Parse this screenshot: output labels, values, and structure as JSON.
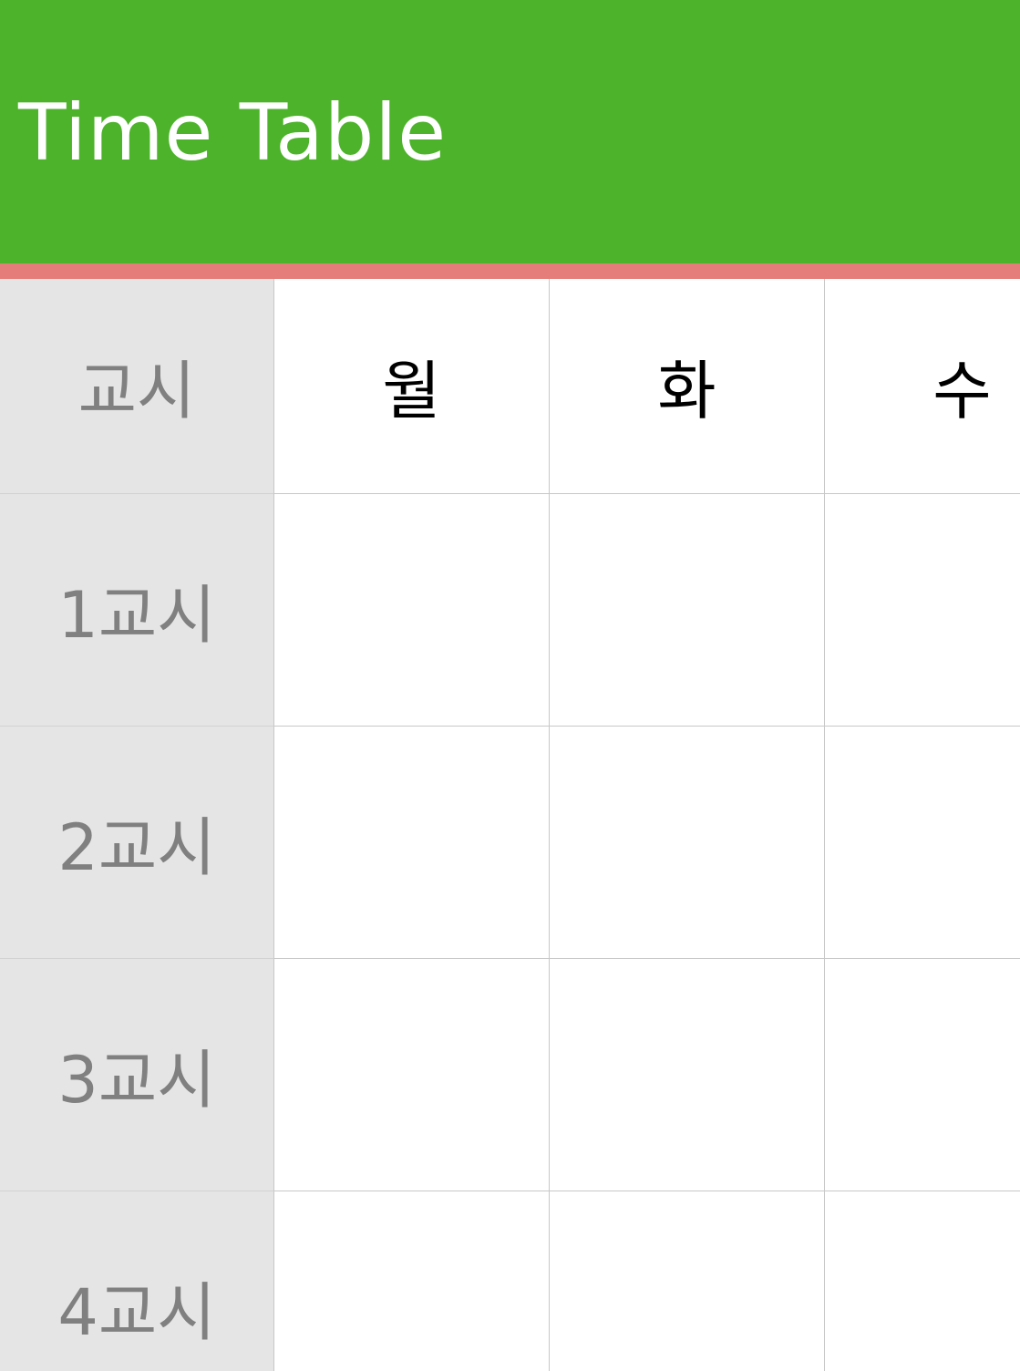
{
  "app_bar": {
    "title": "Time Table",
    "background_color": "#4db32b",
    "accent_color": "#e57e7a"
  },
  "timetable": {
    "corner_label": "교시",
    "days": [
      "월",
      "화",
      "수"
    ],
    "periods": [
      "1교시",
      "2교시",
      "3교시",
      "4교시"
    ],
    "period_column_color": "#e5e5e5"
  }
}
